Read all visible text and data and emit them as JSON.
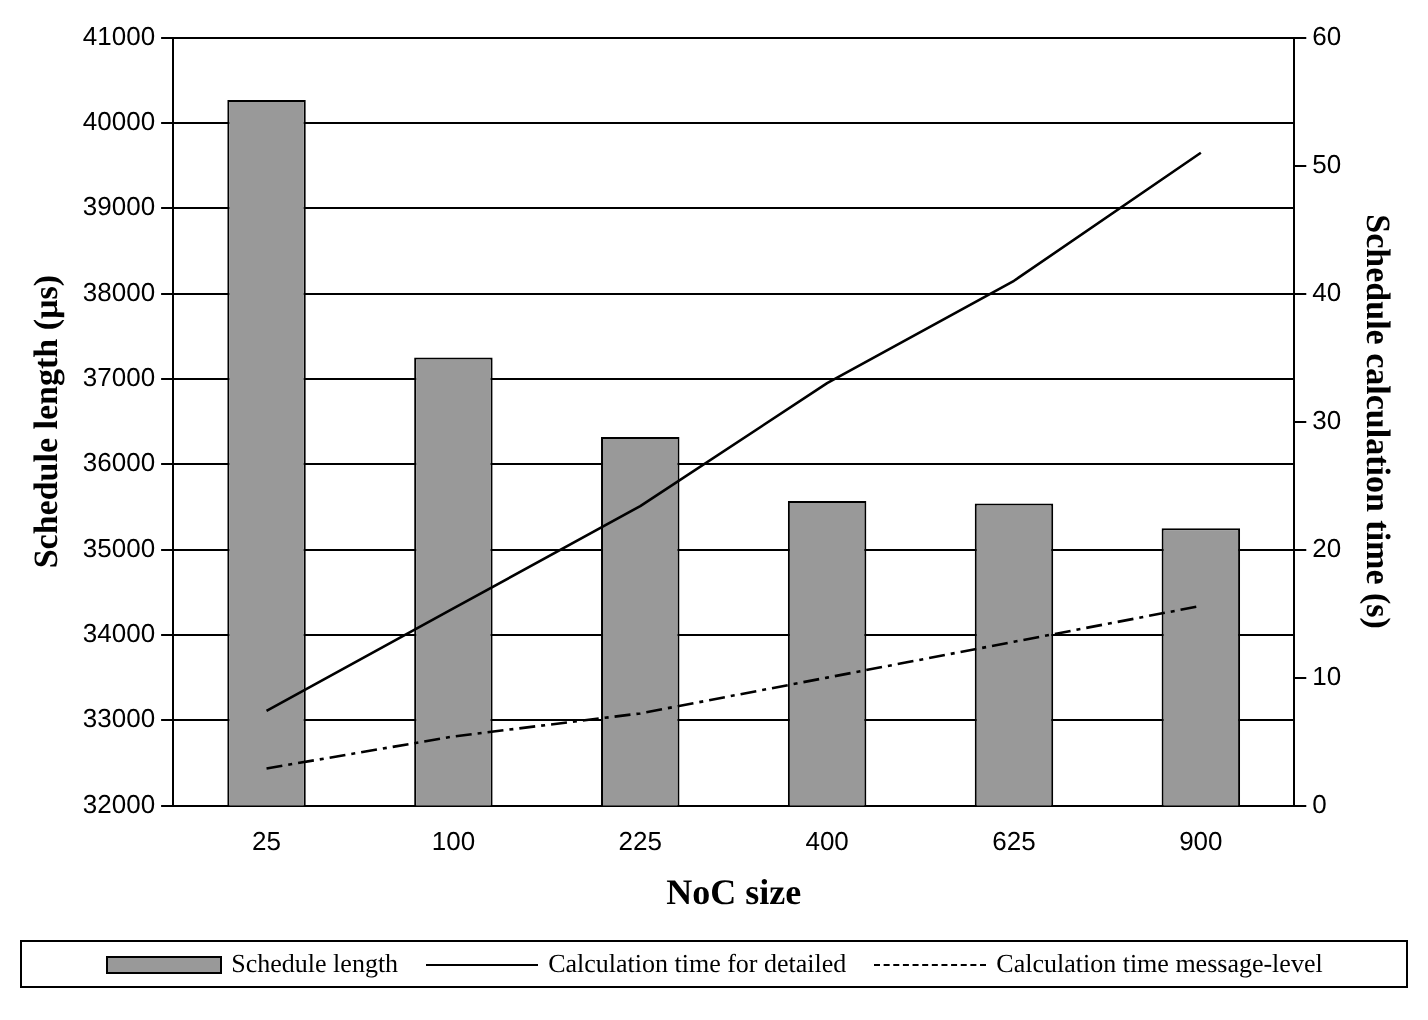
{
  "chart_data": {
    "type": "bar",
    "xlabel": "NoC size",
    "ylabel": "Schedule length (µs)",
    "y2label": "Schedule calculation time (s)",
    "categories": [
      "25",
      "100",
      "225",
      "400",
      "625",
      "900"
    ],
    "series": [
      {
        "name": "Schedule length",
        "color": "#999999",
        "values": [
          40270,
          37250,
          36320,
          35570,
          35540,
          35250
        ]
      },
      {
        "name": "Calculation time for detailed",
        "type": "line",
        "axis": "y2",
        "color": "#000000",
        "line_style": "solid",
        "values": [
          7.4,
          15.4,
          23.4,
          33,
          41,
          51
        ]
      },
      {
        "name": "Calculation time message-level",
        "type": "line",
        "axis": "y2",
        "color": "#000000",
        "line_style": "dashed",
        "values": [
          2.9,
          5.4,
          7.2,
          10,
          12.8,
          15.6
        ]
      }
    ],
    "ylim": [
      32000,
      41000
    ],
    "yticks": [
      32000,
      33000,
      34000,
      35000,
      36000,
      37000,
      38000,
      39000,
      40000,
      41000
    ],
    "y2lim": [
      0,
      60
    ],
    "y2ticks": [
      0,
      10,
      20,
      30,
      40,
      50,
      60
    ],
    "grid": "y",
    "legend": "bottom",
    "marker": "none"
  }
}
